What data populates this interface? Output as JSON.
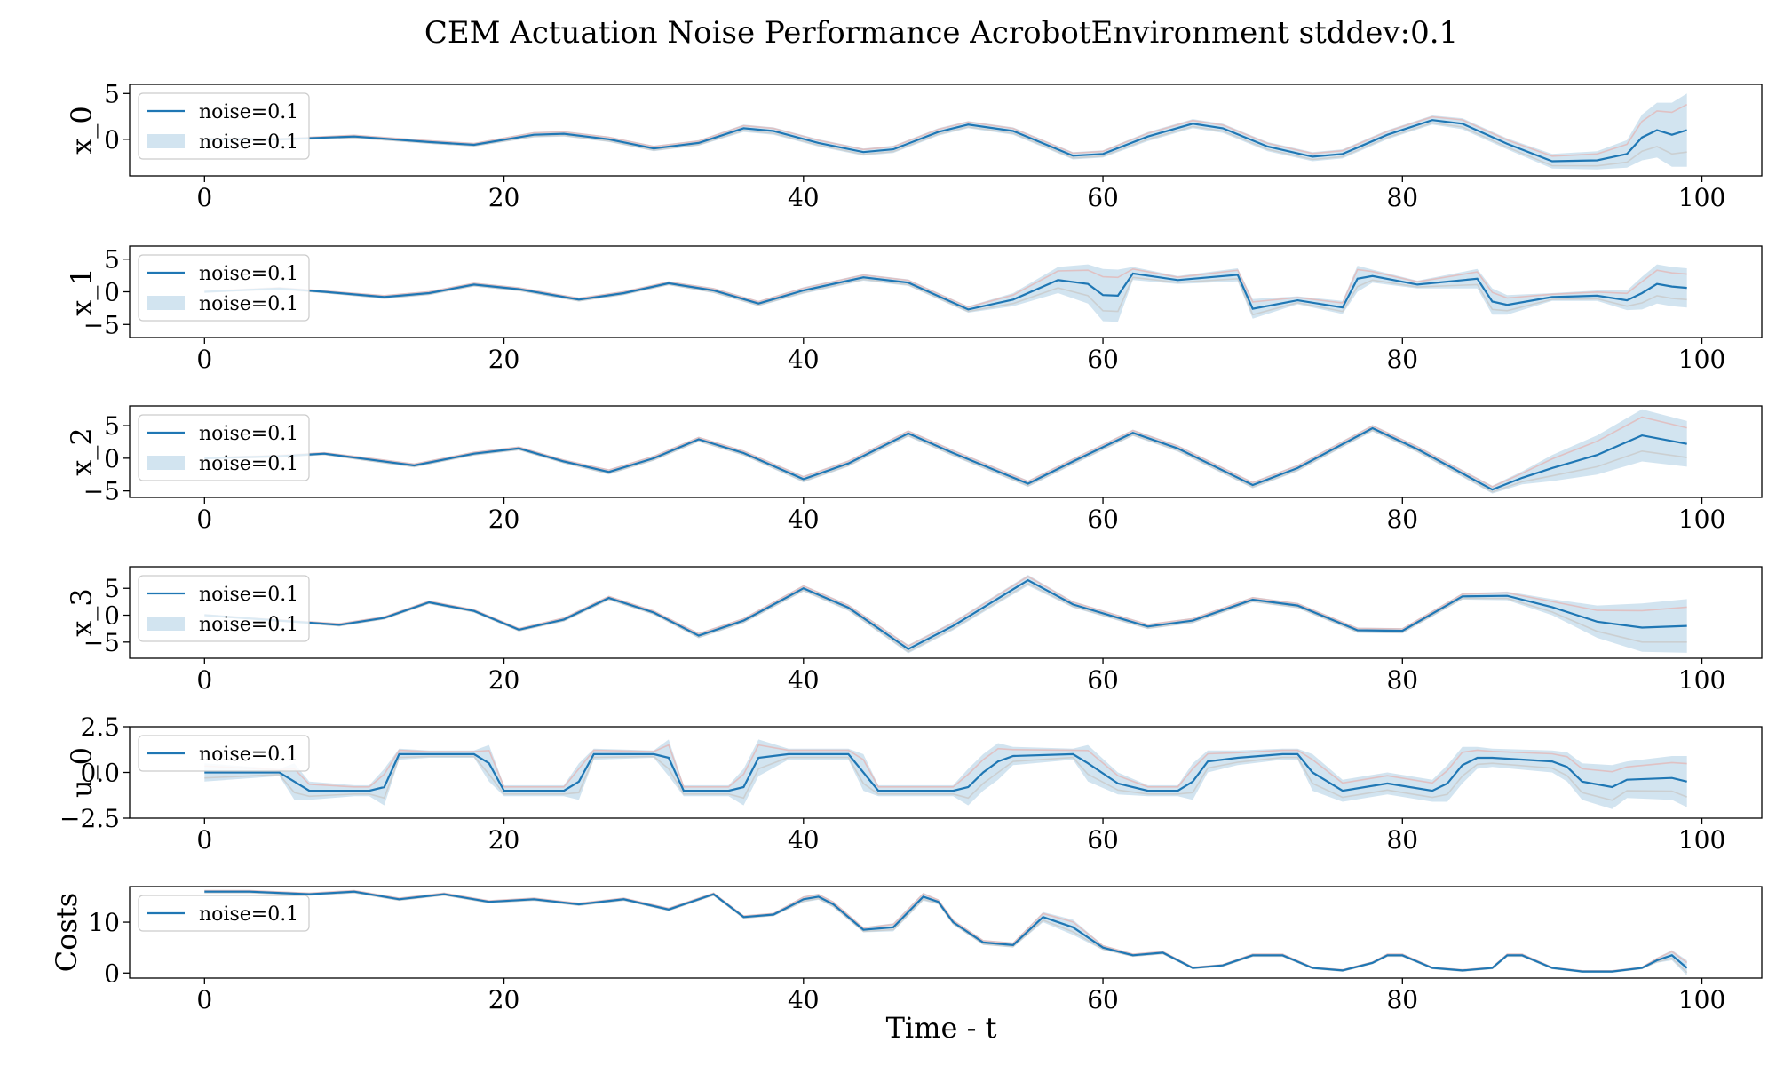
{
  "title": "CEM Actuation Noise Performance AcrobotEnvironment stddev:0.1",
  "xlabel": "Time - t",
  "x_ticks": [
    0,
    20,
    40,
    60,
    80,
    100
  ],
  "colors": {
    "line": "#1f77b4",
    "band": "#1f77b4",
    "faint": "#e3b8b8",
    "grid_axis": "#000000"
  },
  "chart_data": [
    {
      "type": "line",
      "ylabel": "x_0",
      "ylim": [
        -4,
        6
      ],
      "yticks": [
        0,
        5
      ],
      "legend": [
        "noise=0.1",
        "noise=0.1"
      ],
      "legend_placement": "top-left",
      "series": [
        {
          "name": "noise=0.1",
          "x": [
            0,
            5,
            10,
            15,
            18,
            22,
            24,
            27,
            30,
            33,
            36,
            38,
            41,
            44,
            46,
            49,
            51,
            54,
            58,
            60,
            63,
            66,
            68,
            71,
            74,
            76,
            79,
            82,
            84,
            87,
            90,
            93,
            95,
            96,
            97,
            98,
            99
          ],
          "y": [
            0,
            0,
            0.3,
            -0.3,
            -0.6,
            0.5,
            0.6,
            0,
            -1,
            -0.4,
            1.2,
            0.9,
            -0.4,
            -1.4,
            -1.1,
            0.8,
            1.6,
            0.9,
            -1.8,
            -1.6,
            0.3,
            1.7,
            1.2,
            -0.8,
            -1.9,
            -1.6,
            0.5,
            2.1,
            1.7,
            -0.5,
            -2.4,
            -2.3,
            -1.6,
            0.2,
            1,
            0.5,
            1
          ],
          "band_width": [
            0.1,
            0.1,
            0.2,
            0.2,
            0.2,
            0.3,
            0.3,
            0.3,
            0.3,
            0.3,
            0.4,
            0.4,
            0.4,
            0.4,
            0.4,
            0.4,
            0.4,
            0.4,
            0.4,
            0.4,
            0.5,
            0.5,
            0.5,
            0.5,
            0.5,
            0.5,
            0.5,
            0.5,
            0.6,
            0.6,
            0.8,
            1,
            1.5,
            2.5,
            3,
            3.5,
            4
          ]
        }
      ]
    },
    {
      "type": "line",
      "ylabel": "x_1",
      "ylim": [
        -7,
        7
      ],
      "yticks": [
        -5,
        0,
        5
      ],
      "legend": [
        "noise=0.1",
        "noise=0.1"
      ],
      "legend_placement": "top-left",
      "series": [
        {
          "name": "noise=0.1",
          "x": [
            0,
            5,
            8,
            12,
            15,
            18,
            21,
            25,
            28,
            31,
            34,
            37,
            40,
            44,
            47,
            51,
            54,
            57,
            59,
            60,
            61,
            62,
            65,
            69,
            70,
            73,
            76,
            77,
            78,
            81,
            85,
            86,
            87,
            90,
            93,
            95,
            96,
            97,
            98,
            99
          ],
          "y": [
            0,
            0.5,
            0,
            -0.8,
            -0.2,
            1.1,
            0.4,
            -1.2,
            -0.2,
            1.3,
            0.2,
            -1.8,
            0.2,
            2.2,
            1.4,
            -2.7,
            -1.2,
            1.8,
            1.2,
            -0.5,
            -0.6,
            2.8,
            1.8,
            2.6,
            -2.6,
            -1.3,
            -2.4,
            2,
            2.4,
            1.1,
            2,
            -1.5,
            -2,
            -0.8,
            -0.6,
            -1.3,
            -0.2,
            1.2,
            0.8,
            0.6
          ],
          "band_width": [
            0.1,
            0.2,
            0.2,
            0.3,
            0.3,
            0.3,
            0.3,
            0.3,
            0.3,
            0.3,
            0.4,
            0.4,
            0.5,
            0.5,
            0.5,
            0.5,
            1,
            2,
            3,
            4,
            4,
            1,
            0.6,
            1,
            1.5,
            0.6,
            1,
            2,
            1,
            0.6,
            1.5,
            2,
            1.5,
            0.6,
            0.8,
            1.5,
            2.5,
            3,
            3,
            3
          ]
        }
      ]
    },
    {
      "type": "line",
      "ylabel": "x_2",
      "ylim": [
        -6,
        8
      ],
      "yticks": [
        -5,
        0,
        5
      ],
      "legend": [
        "noise=0.1",
        "noise=0.1"
      ],
      "legend_placement": "top-left",
      "series": [
        {
          "name": "noise=0.1",
          "x": [
            0,
            5,
            8,
            11,
            14,
            18,
            21,
            24,
            27,
            30,
            33,
            36,
            40,
            43,
            47,
            50,
            55,
            58,
            62,
            65,
            70,
            73,
            78,
            81,
            86,
            88,
            90,
            93,
            96,
            99
          ],
          "y": [
            0,
            0.3,
            0.7,
            -0.2,
            -1.1,
            0.7,
            1.5,
            -0.5,
            -2.1,
            0,
            2.9,
            0.8,
            -3.2,
            -0.8,
            3.8,
            0.8,
            -3.9,
            -0.5,
            3.9,
            1.5,
            -4.1,
            -1.5,
            4.6,
            1.4,
            -4.8,
            -3,
            -1.5,
            0.5,
            3.5,
            2.2
          ],
          "band_width": [
            0.1,
            0.2,
            0.2,
            0.3,
            0.3,
            0.3,
            0.3,
            0.3,
            0.4,
            0.4,
            0.4,
            0.4,
            0.5,
            0.5,
            0.5,
            0.5,
            0.5,
            0.5,
            0.5,
            0.5,
            0.5,
            0.5,
            0.5,
            0.5,
            0.6,
            1,
            2,
            3,
            4,
            3.5
          ]
        }
      ]
    },
    {
      "type": "line",
      "ylabel": "x_3",
      "ylim": [
        -8,
        9
      ],
      "yticks": [
        -5,
        0,
        5
      ],
      "legend": [
        "noise=0.1",
        "noise=0.1"
      ],
      "legend_placement": "top-left",
      "series": [
        {
          "name": "noise=0.1",
          "x": [
            0,
            5,
            9,
            12,
            15,
            18,
            21,
            24,
            27,
            30,
            33,
            36,
            40,
            43,
            47,
            50,
            55,
            58,
            63,
            66,
            70,
            73,
            77,
            80,
            84,
            87,
            90,
            93,
            96,
            99
          ],
          "y": [
            0,
            -1,
            -1.8,
            -0.5,
            2.4,
            0.8,
            -2.7,
            -0.8,
            3.2,
            0.5,
            -3.8,
            -1,
            5,
            1.4,
            -6.3,
            -2,
            6.5,
            2,
            -2.1,
            -1,
            2.9,
            1.8,
            -2.8,
            -2.9,
            3.5,
            3.6,
            1.5,
            -1.2,
            -2.3,
            -2
          ],
          "band_width": [
            0.1,
            0.2,
            0.3,
            0.3,
            0.3,
            0.3,
            0.3,
            0.4,
            0.4,
            0.4,
            0.5,
            0.5,
            0.6,
            0.6,
            0.8,
            0.8,
            1,
            0.6,
            0.5,
            0.5,
            0.5,
            0.5,
            0.5,
            0.5,
            0.6,
            0.8,
            1.5,
            3,
            4.5,
            5
          ]
        }
      ]
    },
    {
      "type": "line",
      "ylabel": "u_0",
      "ylim": [
        -2.5,
        2.5
      ],
      "yticks": [
        -2.5,
        0.0,
        2.5
      ],
      "legend": [
        "noise=0.1"
      ],
      "legend_placement": "top-left",
      "series": [
        {
          "name": "noise=0.1",
          "x": [
            0,
            5,
            6,
            7,
            10,
            11,
            12,
            13,
            15,
            16,
            18,
            19,
            20,
            24,
            25,
            26,
            30,
            31,
            32,
            35,
            36,
            37,
            39,
            41,
            43,
            44,
            45,
            50,
            51,
            52,
            53,
            54,
            58,
            59,
            61,
            63,
            65,
            66,
            67,
            69,
            72,
            73,
            74,
            76,
            79,
            82,
            83,
            84,
            85,
            86,
            90,
            91,
            92,
            94,
            95,
            98,
            99
          ],
          "y": [
            0,
            0,
            -0.5,
            -1,
            -1,
            -1,
            -0.8,
            1,
            1,
            1,
            1,
            0.5,
            -1,
            -1,
            -0.5,
            1,
            1,
            0.8,
            -1,
            -1,
            -0.8,
            0.8,
            1,
            1,
            1,
            0,
            -1,
            -1,
            -0.8,
            0,
            0.6,
            0.9,
            1,
            0.5,
            -0.6,
            -1,
            -1,
            -0.5,
            0.6,
            0.8,
            1,
            1,
            0,
            -1,
            -0.6,
            -1,
            -0.6,
            0.4,
            0.8,
            0.8,
            0.6,
            0.3,
            -0.5,
            -0.8,
            -0.4,
            -0.3,
            -0.5
          ],
          "band_width": [
            0.5,
            0.2,
            1,
            0.5,
            0.3,
            0.3,
            1,
            0.3,
            0.2,
            0.2,
            0.2,
            1,
            0.3,
            0.3,
            1,
            0.3,
            0.2,
            1,
            0.3,
            0.3,
            1,
            1,
            0.3,
            0.3,
            0.3,
            1,
            0.3,
            0.3,
            1,
            1,
            1,
            0.5,
            0.3,
            1,
            0.6,
            0.3,
            0.3,
            1,
            0.6,
            0.4,
            0.3,
            0.3,
            1,
            0.6,
            0.6,
            0.6,
            1,
            1,
            0.6,
            0.5,
            0.6,
            0.8,
            1,
            1.2,
            1,
            1.2,
            1.4
          ]
        }
      ]
    },
    {
      "type": "line",
      "ylabel": "Costs",
      "ylim": [
        -1,
        17
      ],
      "yticks": [
        0,
        10
      ],
      "legend": [
        "noise=0.1"
      ],
      "legend_placement": "top-left",
      "series": [
        {
          "name": "noise=0.1",
          "x": [
            0,
            3,
            7,
            10,
            13,
            16,
            19,
            22,
            25,
            28,
            31,
            34,
            36,
            38,
            40,
            41,
            42,
            44,
            46,
            48,
            49,
            50,
            52,
            54,
            56,
            58,
            60,
            62,
            64,
            66,
            68,
            70,
            72,
            74,
            76,
            78,
            79,
            80,
            82,
            84,
            86,
            87,
            88,
            90,
            92,
            94,
            96,
            97,
            98,
            99
          ],
          "y": [
            16,
            16,
            15.5,
            16,
            14.5,
            15.5,
            14,
            14.5,
            13.5,
            14.5,
            12.5,
            15.5,
            11,
            11.5,
            14.5,
            15,
            13.5,
            8.5,
            9,
            15,
            14,
            10,
            6,
            5.5,
            11,
            9,
            5,
            3.5,
            4,
            1,
            1.5,
            3.5,
            3.5,
            1,
            0.5,
            2,
            3.5,
            3.5,
            1,
            0.5,
            1,
            3.5,
            3.5,
            1,
            0.3,
            0.3,
            1,
            2.5,
            3.5,
            1
          ],
          "band_width": [
            0.3,
            0.3,
            0.3,
            0.3,
            0.3,
            0.3,
            0.3,
            0.3,
            0.3,
            0.3,
            0.3,
            0.3,
            0.3,
            0.3,
            0.6,
            0.6,
            0.6,
            0.5,
            0.8,
            0.8,
            0.5,
            0.5,
            0.5,
            0.5,
            1,
            1.5,
            0.5,
            0.3,
            0.3,
            0.2,
            0.2,
            0.3,
            0.3,
            0.2,
            0.2,
            0.2,
            0.3,
            0.3,
            0.2,
            0.2,
            0.2,
            0.3,
            0.3,
            0.2,
            0.2,
            0.2,
            0.2,
            0.5,
            1,
            1.5
          ]
        }
      ]
    }
  ]
}
